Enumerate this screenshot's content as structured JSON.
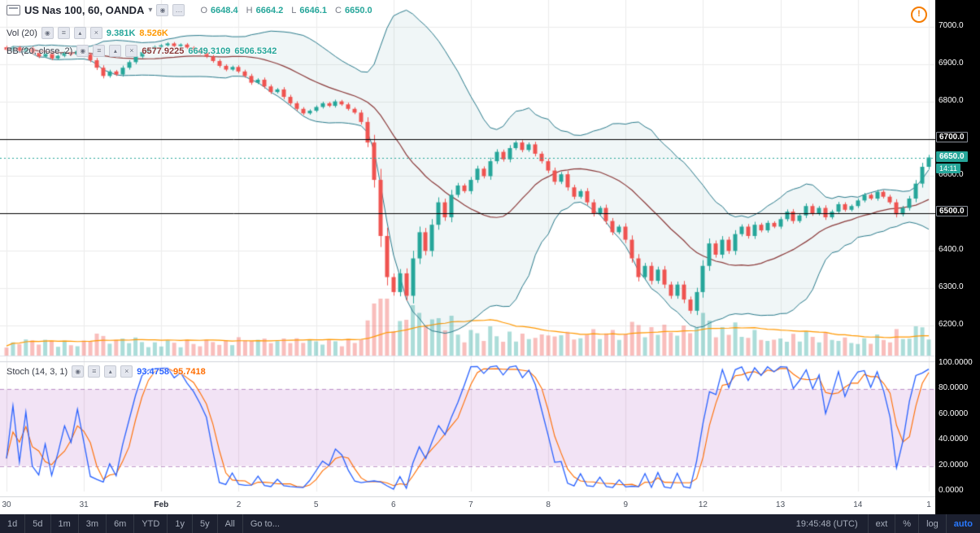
{
  "header": {
    "symbol_title": "US Nas 100, 60, OANDA",
    "ohlc": {
      "o_label": "O",
      "o": "6648.4",
      "h_label": "H",
      "h": "6664.2",
      "l_label": "L",
      "l": "6646.1",
      "c_label": "C",
      "c": "6650.0"
    }
  },
  "indicators": {
    "volume": {
      "label": "Vol (20)",
      "value": "9.381K",
      "ma_value": "8.526K"
    },
    "bb": {
      "label": "BB (20, close, 2)",
      "basis": "6577.9225",
      "upper": "6649.3109",
      "lower": "6506.5342"
    },
    "stoch": {
      "label": "Stoch (14, 3, 1)",
      "k": "93.4758",
      "d": "95.7418"
    }
  },
  "chart_data": {
    "type": "candlestick",
    "title": "US Nas 100, 60, OANDA",
    "symbol": "US Nas 100",
    "interval_minutes": 60,
    "exchange": "OANDA",
    "panes": [
      "price+bollinger+volume",
      "stochastic"
    ],
    "first_open": 6945,
    "candles_per_day": 12,
    "closes": [
      6938,
      6944,
      6935,
      6942,
      6930,
      6920,
      6928,
      6915,
      6922,
      6930,
      6925,
      6935,
      6925,
      6910,
      6890,
      6868,
      6880,
      6872,
      6890,
      6905,
      6920,
      6932,
      6940,
      6946,
      6950,
      6955,
      6948,
      6952,
      6944,
      6938,
      6930,
      6920,
      6908,
      6895,
      6885,
      6892,
      6880,
      6868,
      6850,
      6858,
      6840,
      6825,
      6832,
      6812,
      6795,
      6780,
      6768,
      6775,
      6785,
      6795,
      6788,
      6800,
      6792,
      6780,
      6770,
      6745,
      6690,
      6590,
      6440,
      6330,
      6290,
      6340,
      6280,
      6380,
      6450,
      6400,
      6470,
      6530,
      6490,
      6550,
      6575,
      6560,
      6590,
      6620,
      6600,
      6640,
      6665,
      6645,
      6675,
      6690,
      6670,
      6685,
      6660,
      6640,
      6615,
      6585,
      6605,
      6570,
      6545,
      6560,
      6530,
      6500,
      6515,
      6480,
      6450,
      6465,
      6430,
      6380,
      6330,
      6360,
      6320,
      6350,
      6310,
      6280,
      6310,
      6270,
      6240,
      6290,
      6360,
      6420,
      6390,
      6430,
      6400,
      6445,
      6465,
      6440,
      6470,
      6455,
      6475,
      6465,
      6485,
      6505,
      6480,
      6495,
      6520,
      6500,
      6515,
      6490,
      6505,
      6525,
      6510,
      6520,
      6535,
      6550,
      6540,
      6558,
      6545,
      6530,
      6498,
      6515,
      6540,
      6580,
      6625,
      6650
    ],
    "time_labels": [
      {
        "label": "30",
        "index": 0
      },
      {
        "label": "31",
        "index": 12
      },
      {
        "label": "Feb",
        "index": 24
      },
      {
        "label": "2",
        "index": 36
      },
      {
        "label": "5",
        "index": 48
      },
      {
        "label": "6",
        "index": 60
      },
      {
        "label": "7",
        "index": 72
      },
      {
        "label": "8",
        "index": 84
      },
      {
        "label": "9",
        "index": 96
      },
      {
        "label": "12",
        "index": 108
      },
      {
        "label": "13",
        "index": 120
      },
      {
        "label": "14",
        "index": 132
      },
      {
        "label": "1",
        "index": 143
      }
    ],
    "price_axis": {
      "ylim": [
        6120,
        7032
      ],
      "ticks": [
        {
          "label": "7000.0",
          "value": 7000,
          "badge": "none"
        },
        {
          "label": "6900.0",
          "value": 6900,
          "badge": "none"
        },
        {
          "label": "6800.0",
          "value": 6800,
          "badge": "none"
        },
        {
          "label": "6700.0",
          "value": 6700,
          "badge": "level"
        },
        {
          "label": "6600.0",
          "value": 6600,
          "badge": "none"
        },
        {
          "label": "6500.0",
          "value": 6500,
          "badge": "level"
        },
        {
          "label": "6400.0",
          "value": 6400,
          "badge": "none"
        },
        {
          "label": "6300.0",
          "value": 6300,
          "badge": "none"
        },
        {
          "label": "6200.0",
          "value": 6200,
          "badge": "none"
        }
      ]
    },
    "levels": [
      {
        "value": 6700,
        "label": "6700.0"
      },
      {
        "value": 6500,
        "label": "6500.0"
      }
    ],
    "last": {
      "value": 6650,
      "label": "6650.0",
      "countdown": "14:11"
    },
    "stoch_axis": {
      "band": [
        20,
        80
      ],
      "ticks": [
        {
          "label": "100.0000",
          "value": 100
        },
        {
          "label": "80.0000",
          "value": 80
        },
        {
          "label": "60.0000",
          "value": 60
        },
        {
          "label": "40.0000",
          "value": 40
        },
        {
          "label": "20.0000",
          "value": 20
        },
        {
          "label": "0.0000",
          "value": 0
        }
      ]
    },
    "bollinger": {
      "length": 20,
      "source": "close",
      "stdev": 2
    },
    "stochastic": {
      "k_length": 14,
      "k_smoothing": 1,
      "d_smoothing": 3
    },
    "colors": {
      "up": "#26a69a",
      "down": "#ef5350",
      "vol_up": "rgba(38,166,154,0.38)",
      "vol_down": "rgba(239,83,80,0.38)",
      "vol_ma": "#ff9800",
      "bb_band": "#2a7b8c",
      "bb_basis": "#8b3a3a",
      "bb_fill": "rgba(42,123,140,0.07)",
      "stoch_k": "#2962ff",
      "stoch_d": "#ff6d00",
      "band_fill": "rgba(156,39,176,0.13)",
      "band_line": "rgba(118,32,140,0.45)",
      "level": "#000000",
      "last_line": "#26a69a",
      "grid": "#ececec"
    }
  },
  "toolbar": {
    "ranges": [
      "1d",
      "5d",
      "1m",
      "3m",
      "6m",
      "YTD",
      "1y",
      "5y",
      "All"
    ],
    "goto_label": "Go to...",
    "clock": "19:45:48 (UTC)",
    "modes": [
      "ext",
      "%",
      "log",
      "auto"
    ],
    "active_mode": "auto"
  }
}
